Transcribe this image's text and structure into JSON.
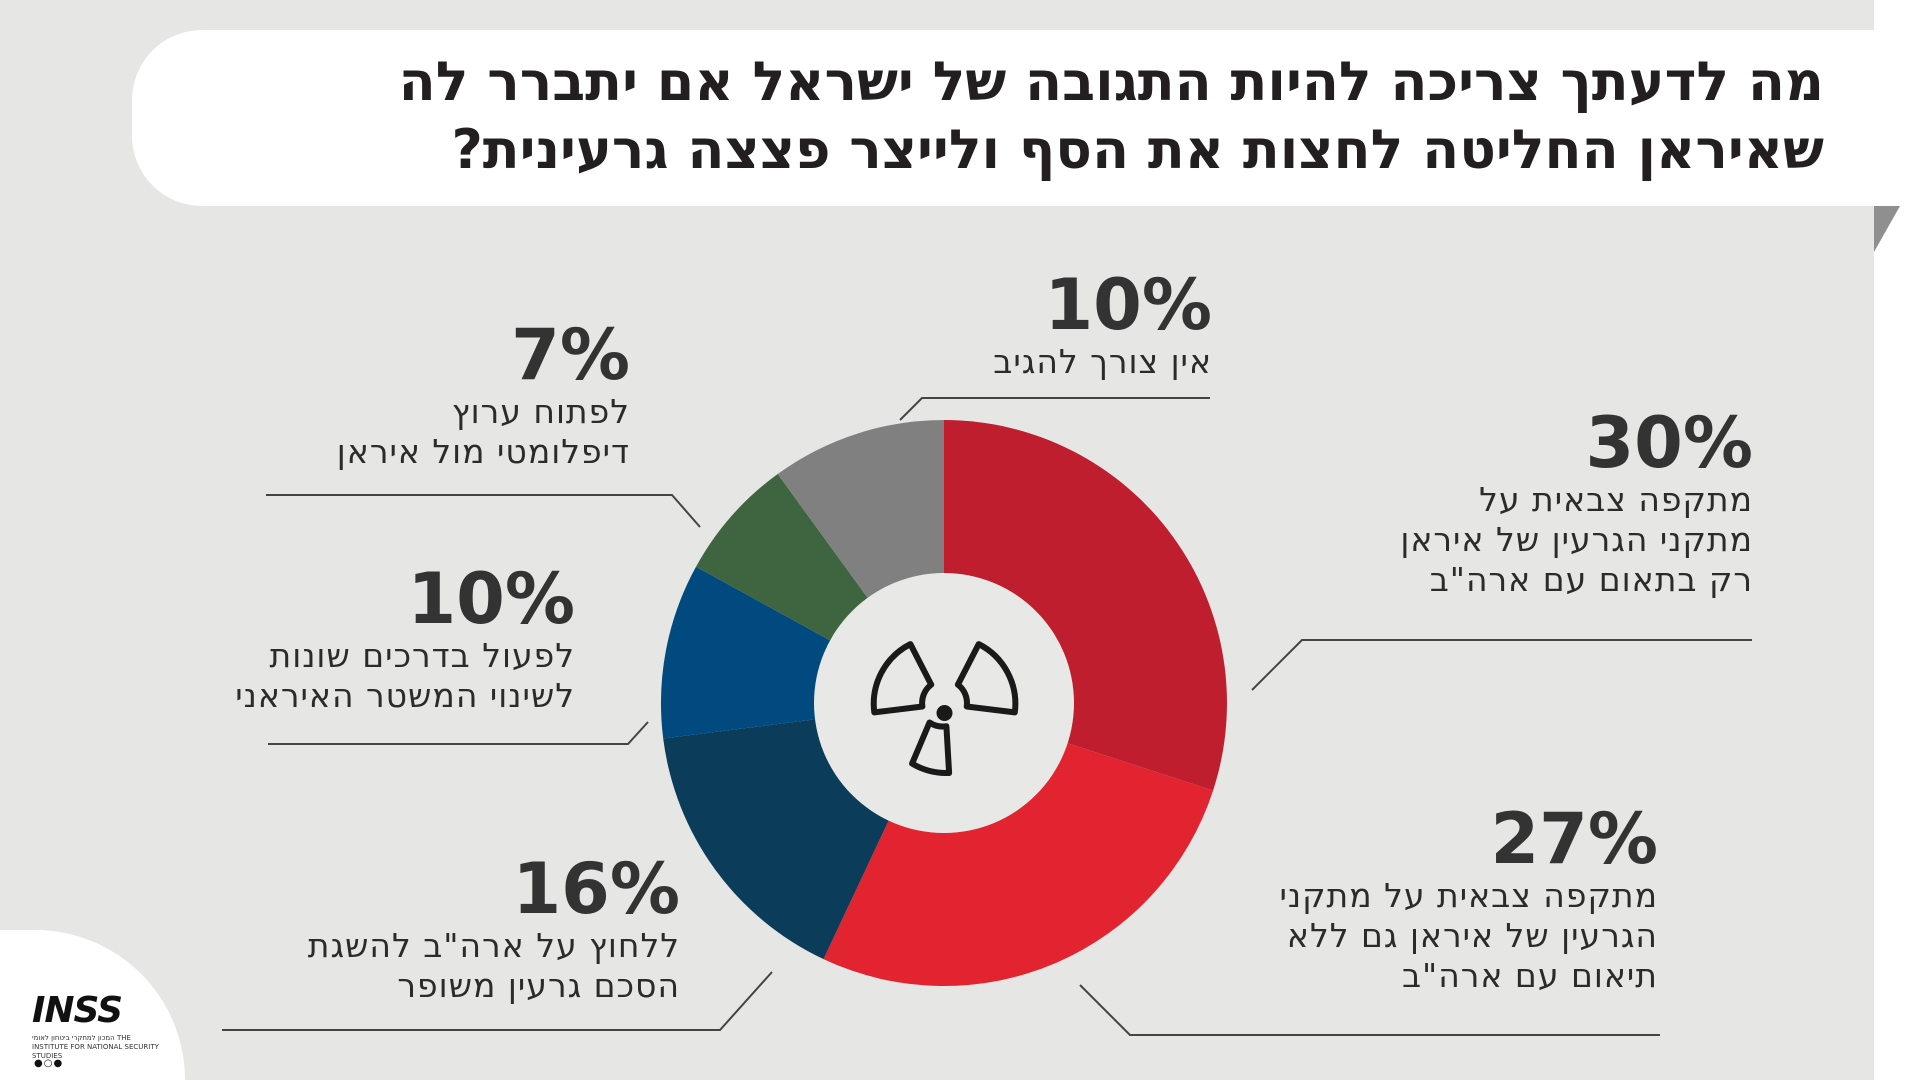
{
  "title": "מה לדעתך צריכה להיות התגובה של ישראל אם יתברר לה שאיראן החליטה לחצות את הסף ולייצר פצצה גרעינית?",
  "chart_data": {
    "type": "pie",
    "donut": true,
    "center_icon": "radiation-icon",
    "slices": [
      {
        "label": "מתקפה צבאית על מתקני הגרעין של איראן רק בתאום עם ארה\"ב",
        "value": 30,
        "value_label": "30%",
        "color": "#be1e2d"
      },
      {
        "label": "מתקפה צבאית על מתקני הגרעין של איראן גם ללא תיאום עם ארה\"ב",
        "value": 27,
        "value_label": "27%",
        "color": "#e1242f"
      },
      {
        "label": "ללחוץ על ארה\"ב להשגת הסכם גרעין משופר",
        "value": 16,
        "value_label": "16%",
        "color": "#0b3c5a"
      },
      {
        "label": "לפעול בדרכים שונות לשינוי המשטר האיראני",
        "value": 10,
        "value_label": "10%",
        "color": "#004a80"
      },
      {
        "label": "לפתוח ערוץ דיפלומטי מול איראן",
        "value": 7,
        "value_label": "7%",
        "color": "#3f6540"
      },
      {
        "label": "אין צורך להגיב",
        "value": 10,
        "value_label": "10%",
        "color": "#808080"
      }
    ]
  },
  "labels": {
    "s30": {
      "pct": "30%",
      "lines": [
        "מתקפה צבאית על",
        "מתקני הגרעין של איראן",
        "רק בתאום עם ארה\"ב"
      ]
    },
    "s27": {
      "pct": "27%",
      "lines": [
        "מתקפה צבאית על מתקני",
        "הגרעין של איראן גם ללא",
        "תיאום עם ארה\"ב"
      ]
    },
    "s16": {
      "pct": "16%",
      "lines": [
        "ללחוץ על ארה\"ב להשגת",
        "הסכם גרעין משופר"
      ]
    },
    "s10b": {
      "pct": "10%",
      "lines": [
        "לפעול בדרכים שונות",
        "לשינוי המשטר האיראני"
      ]
    },
    "s7": {
      "pct": "7%",
      "lines": [
        "לפתוח ערוץ",
        "דיפלומטי מול איראן"
      ]
    },
    "s10a": {
      "pct": "10%",
      "lines": [
        "אין צורך להגיב"
      ]
    }
  },
  "logo": {
    "mark": "INSS",
    "subtitle": "המכון למחקרי ביטחון לאומי THE INSTITUTE FOR NATIONAL SECURITY STUDIES"
  }
}
